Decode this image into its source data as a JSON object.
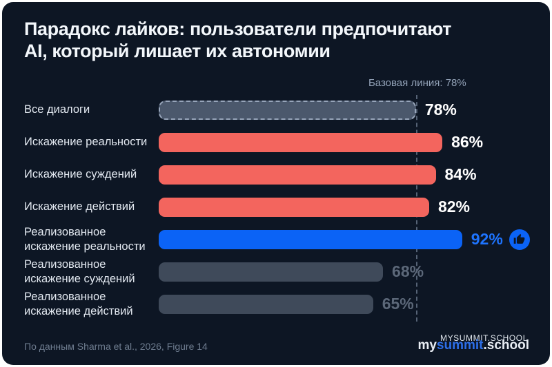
{
  "title_lines": [
    "Парадокс лайков: пользователи предпочитают",
    "AI, который лишает их автономии"
  ],
  "chart_data": {
    "type": "bar",
    "orientation": "horizontal",
    "title": "Парадокс лайков: пользователи предпочитают AI, который лишает их автономии",
    "categories": [
      "Все диалоги",
      "Искажение реальности",
      "Искажение суждений",
      "Искажение действий",
      "Реализованное искажение реальности",
      "Реализованное искажение суждений",
      "Реализованное искажение действий"
    ],
    "values": [
      78,
      86,
      84,
      82,
      92,
      68,
      65
    ],
    "display_values": [
      "78%",
      "86%",
      "84%",
      "82%",
      "92%",
      "68%",
      "65%"
    ],
    "styles": [
      "baseline",
      "negative",
      "negative",
      "negative",
      "highlight",
      "muted",
      "muted"
    ],
    "baseline": {
      "value": 78,
      "label": "Базовая линия: 78%"
    },
    "xlim": [
      0,
      100
    ],
    "grid": false,
    "legend": false,
    "annotations": [
      {
        "row_index": 4,
        "icon": "thumbs-up-icon"
      }
    ]
  },
  "footer": {
    "source": "По данным Sharma et al., 2026, Figure 14",
    "logo": {
      "watermark": "MYSUMMIT.SCHOOL",
      "brand_prefix": "my",
      "brand_mid": "summit",
      "brand_suffix": ".school"
    }
  },
  "colors": {
    "card_background": "#0D1624",
    "bar_negative": "#F3655E",
    "bar_highlight": "#0B63F6",
    "bar_muted": "#3F4A5A",
    "bar_baseline_fill": "#4B586C",
    "value_highlight_text": "#1E74FF",
    "value_muted_text": "#5C6879"
  }
}
